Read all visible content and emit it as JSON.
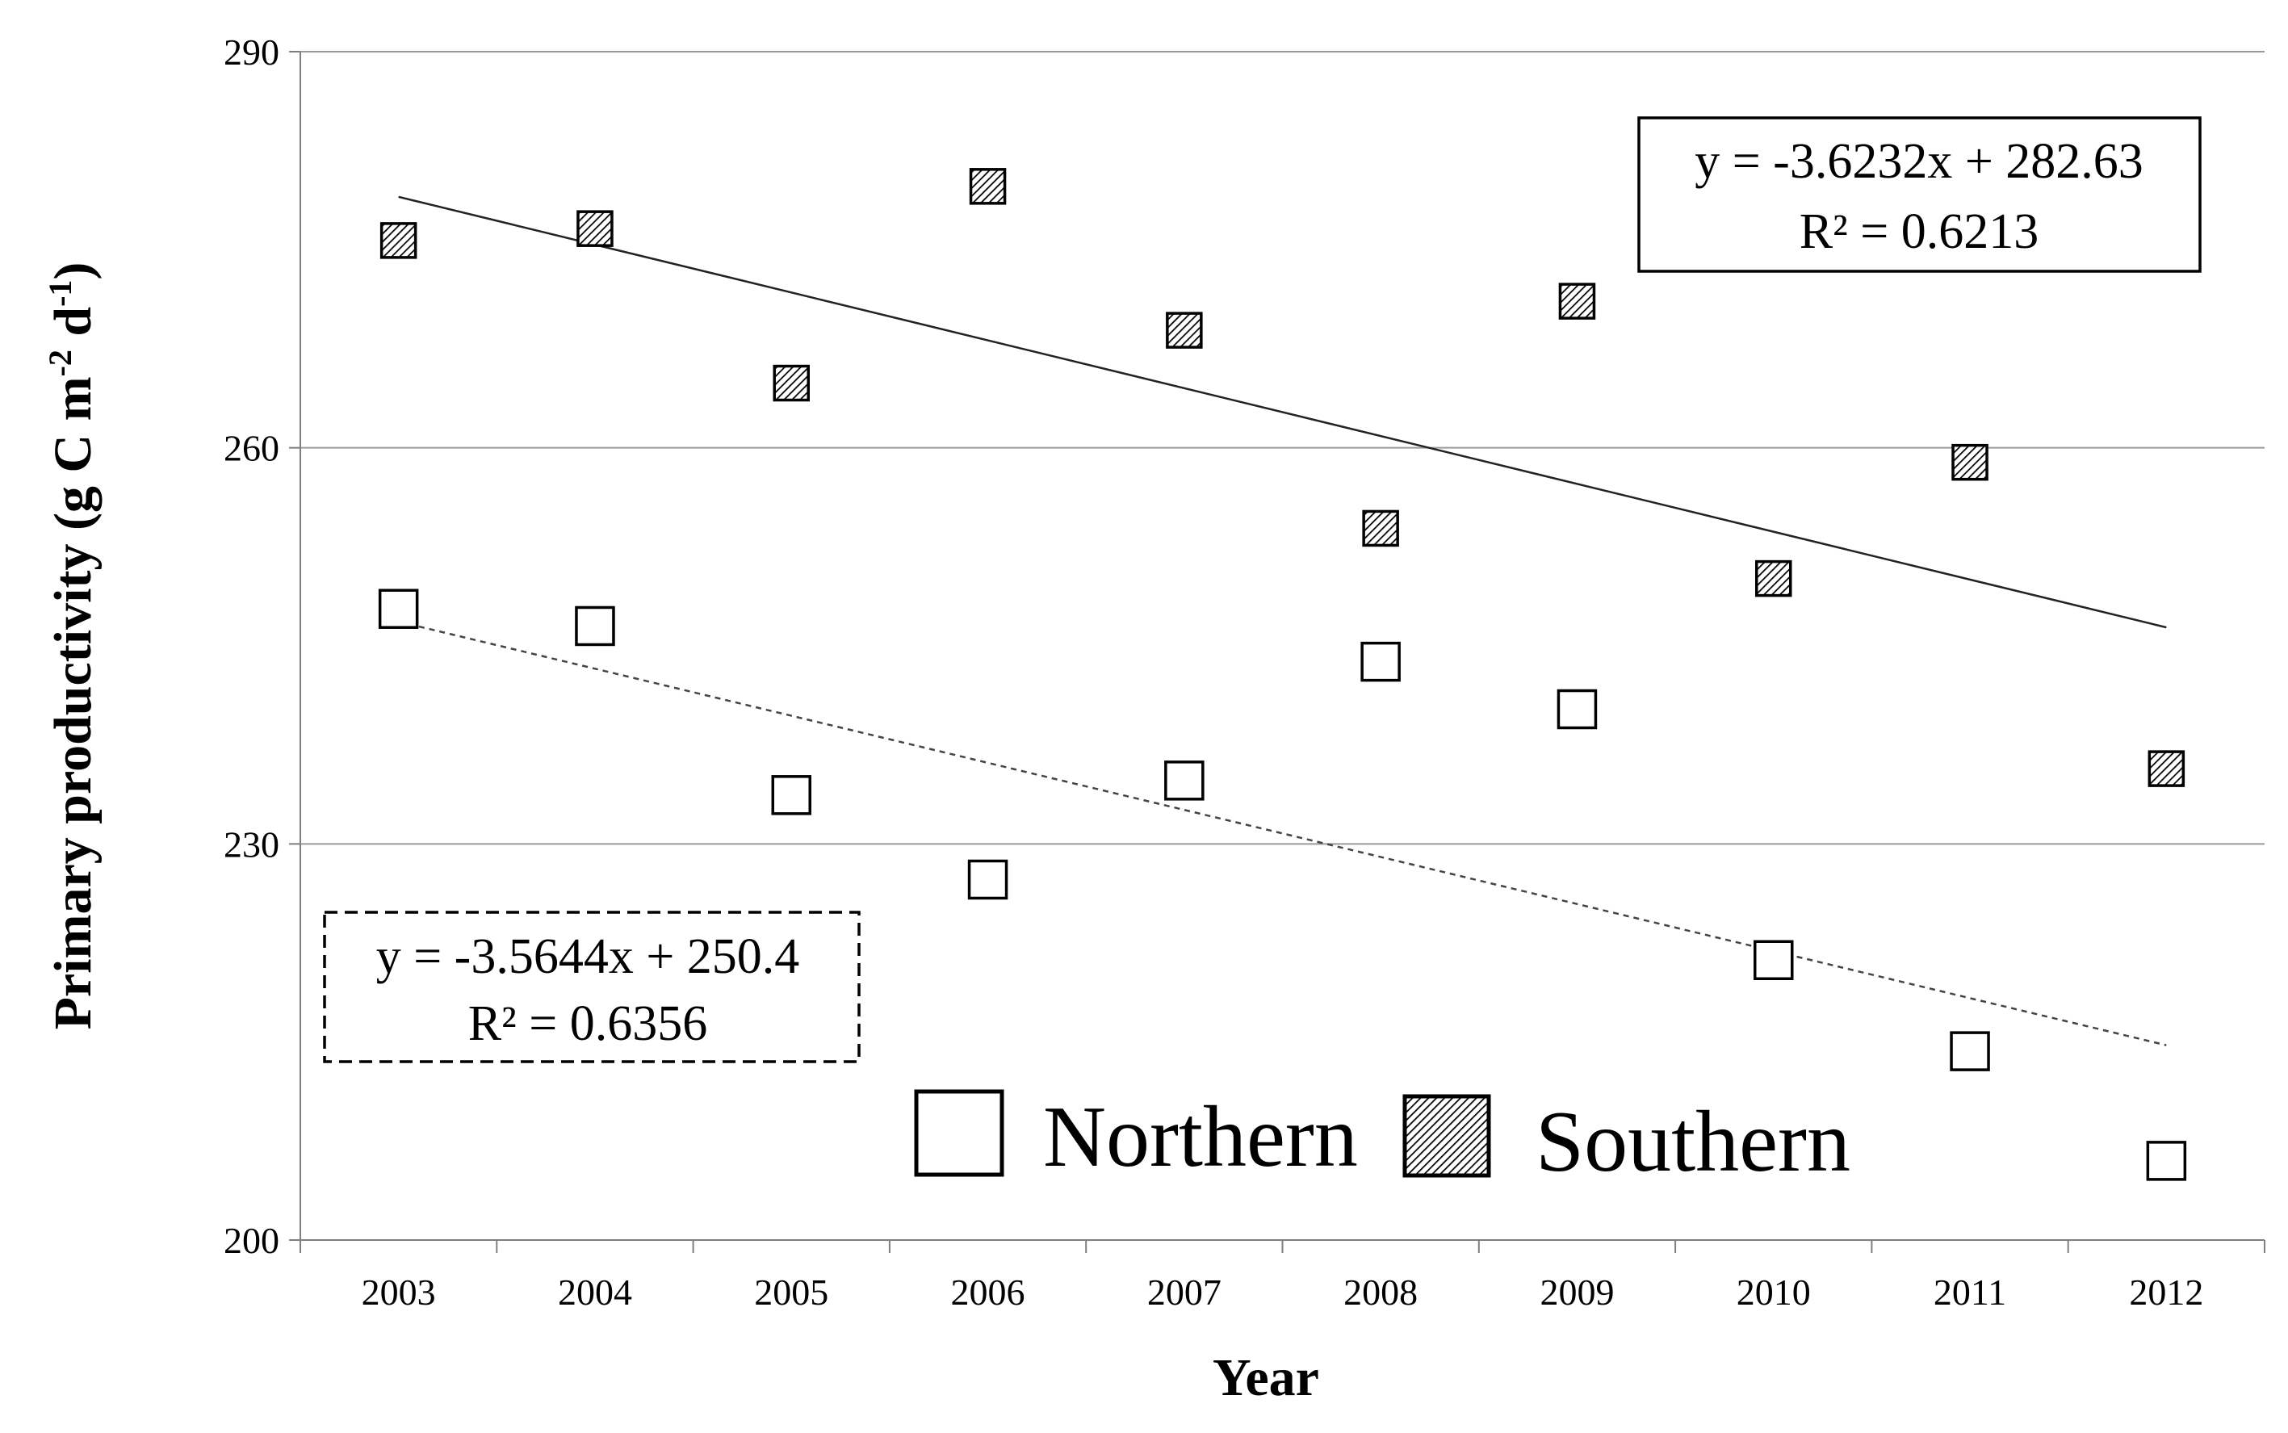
{
  "chart_data": {
    "type": "scatter",
    "title": "",
    "xlabel": "Year",
    "ylabel": "Primary productivity (g C m",
    "ylabel_sup1": "-2",
    "ylabel_mid": " d",
    "ylabel_sup2": "-1",
    "ylabel_end": ")",
    "ylim": [
      200,
      290
    ],
    "yticks": [
      "200",
      "230",
      "260",
      "290"
    ],
    "ytick_values": [
      200,
      230,
      260,
      290
    ],
    "categories": [
      "2003",
      "2004",
      "2005",
      "2006",
      "2007",
      "2008",
      "2009",
      "2010",
      "2011",
      "2012"
    ],
    "grid": true,
    "legend_position": "bottom-right",
    "series": [
      {
        "name": "Northern",
        "marker": "open-square",
        "values": [
          247.8,
          246.5,
          233.7,
          227.3,
          234.8,
          243.8,
          240.2,
          221.2,
          214.3,
          206.0
        ],
        "trend": {
          "slope": -3.5644,
          "intercept": 250.4,
          "style": "dashed"
        },
        "equation": "y = -3.5644x  + 250.4",
        "r2": "R² = 0.6356"
      },
      {
        "name": "Southern",
        "marker": "hatched-square",
        "values": [
          275.7,
          276.6,
          264.9,
          279.8,
          268.9,
          253.9,
          271.1,
          250.1,
          258.9,
          235.7
        ],
        "trend": {
          "slope": -3.6232,
          "intercept": 282.63,
          "style": "solid"
        },
        "equation": "y = -3.6232x  + 282.63",
        "r2": "R² = 0.6213"
      }
    ]
  }
}
